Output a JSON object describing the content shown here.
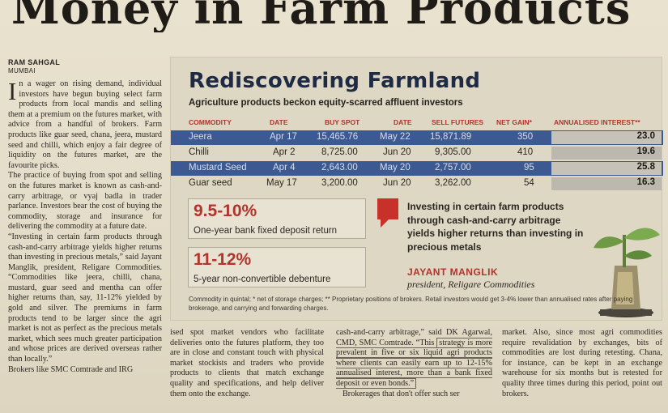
{
  "headline": "Money in Farm Products",
  "byline": {
    "author": "RAM SAHGAL",
    "city": "MUMBAI"
  },
  "column1": {
    "dropcap": "I",
    "p1": "n a wager on rising demand, individual investors have begun buying select farm products from local mandis and selling them at a premium on the futures market, with advice from a handful of brokers. Farm products like guar seed, chana, jeera, mustard seed and chilli, which enjoy a fair degree of liquidity on the futures market, are the favourite picks.",
    "p2": "The practice of buying from spot and selling on the futures market is known as cash-and-carry arbitrage, or vyaj badla in trader parlance. Investors bear the cost of buying the commodity, storage and insurance for delivering the commodity at a future date.",
    "p3": "“Investing in certain farm products through cash-and-carry arbitrage yields higher returns than investing in precious metals,” said Jayant Manglik, president, Religare Commodities. “Commodities like jeera, chilli, chana, mustard, guar seed and mentha can offer higher returns than, say, 11-12% yielded by gold and silver. The premiums in farm products tend to be larger since the agri market is not as perfect as the precious metals market, which sees much greater participation and whose prices are derived overseas rather than locally.”",
    "p4": "Brokers like SMC Comtrade and IRG"
  },
  "column2": {
    "text": "ised spot market vendors who facilitate deliveries onto the futures platform, they too are in close and constant touch with physical market stockists and traders who provide products to clients that match exchange quality and specifications, and help deliver them onto the exchange."
  },
  "column3": {
    "lead": "cash-and-carry arbitrage,” said DK Agarwal, CMD, SMC Comtrade. “This",
    "boxed": "strategy is more prevalent in five or six liquid agri products where clients can easily earn up to 12-15% annualised interest, more than a bank fixed deposit or even bonds.”",
    "tail": "Brokerages that don't offer such ser"
  },
  "column4": {
    "text": "market. Also, since most agri commodities require revalidation by exchanges, bits of commodities are lost during retesting. Chana, for instance, can be kept in an exchange warehouse for six months but is retested for quality three times during this period, point out brokers."
  },
  "infobox": {
    "title": "Rediscovering Farmland",
    "subtitle": "Agriculture products beckon equity-scarred affluent investors",
    "headers": {
      "commodity": "COMMODITY",
      "date1": "DATE",
      "buy_spot": "BUY SPOT",
      "date2": "DATE",
      "sell_futures": "SELL FUTURES",
      "net_gain": "NET GAIN*",
      "annualised": "ANNUALISED INTEREST**"
    },
    "rows": [
      {
        "commodity": "Jeera",
        "date1": "Apr 17",
        "buy": "15,465.76",
        "date2": "May 22",
        "sell": "15,871.89",
        "gain": "350",
        "interest": "23.0"
      },
      {
        "commodity": "Chilli",
        "date1": "Apr 2",
        "buy": "8,725.00",
        "date2": "Jun 20",
        "sell": "9,305.00",
        "gain": "410",
        "interest": "19.6"
      },
      {
        "commodity": "Mustard Seed",
        "date1": "Apr 4",
        "buy": "2,643.00",
        "date2": "May 20",
        "sell": "2,757.00",
        "gain": "95",
        "interest": "25.8"
      },
      {
        "commodity": "Guar seed",
        "date1": "May 17",
        "buy": "3,200.00",
        "date2": "Jun 20",
        "sell": "3,262.00",
        "gain": "54",
        "interest": "16.3"
      }
    ],
    "rate1": {
      "value": "9.5-10%",
      "label": "One-year bank fixed deposit return"
    },
    "rate2": {
      "value": "11-12%",
      "label": "5-year non-convertible debenture"
    },
    "quote": "Investing in certain farm products through cash-and-carry arbitrage yields higher returns than investing in precious metals",
    "quote_name": "JAYANT MANGLIK",
    "quote_title": "president, Religare Commodities",
    "footnote": "Commodity in quintal; * net of storage charges; ** Proprietary positions of brokers. Retail investors would get 3-4% lower than annualised rates after paying brokerage, and carrying and forwarding charges."
  },
  "colors": {
    "accent_red": "#b2342c",
    "row_blue": "#3c5a91",
    "title_navy": "#1f2a44"
  }
}
